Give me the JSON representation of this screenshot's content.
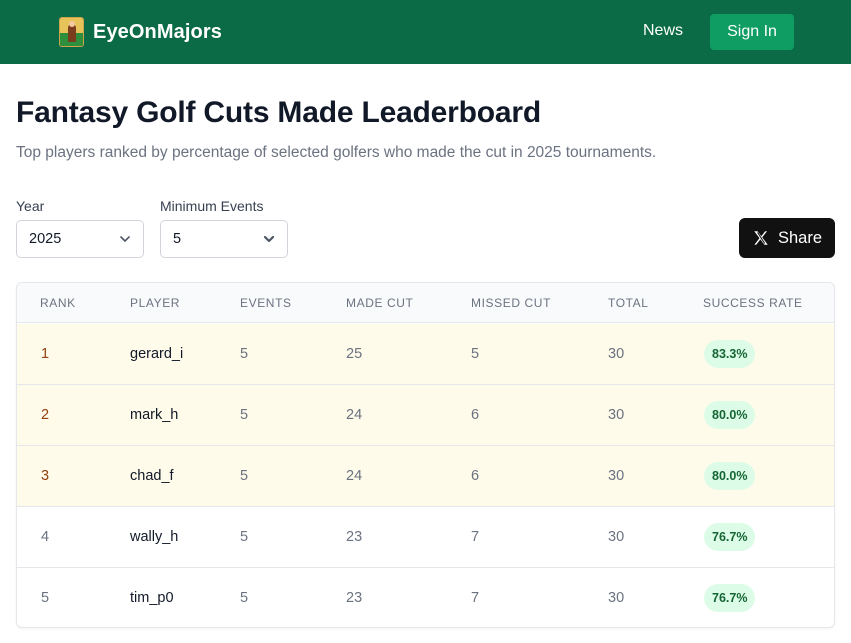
{
  "nav": {
    "brand": "EyeOnMajors",
    "news": "News",
    "sign_in": "Sign In"
  },
  "page": {
    "title": "Fantasy Golf Cuts Made Leaderboard",
    "subtitle": "Top players ranked by percentage of selected golfers who made the cut in 2025 tournaments."
  },
  "filters": {
    "year": {
      "label": "Year",
      "value": "2025"
    },
    "min_events": {
      "label": "Minimum Events",
      "value": "5"
    }
  },
  "share": {
    "label": "Share"
  },
  "table": {
    "headers": [
      "RANK",
      "PLAYER",
      "EVENTS",
      "MADE CUT",
      "MISSED CUT",
      "TOTAL",
      "SUCCESS RATE"
    ],
    "rows": [
      {
        "rank": "1",
        "player": "gerard_i",
        "events": "5",
        "made": "25",
        "missed": "5",
        "total": "30",
        "rate": "83.3%"
      },
      {
        "rank": "2",
        "player": "mark_h",
        "events": "5",
        "made": "24",
        "missed": "6",
        "total": "30",
        "rate": "80.0%"
      },
      {
        "rank": "3",
        "player": "chad_f",
        "events": "5",
        "made": "24",
        "missed": "6",
        "total": "30",
        "rate": "80.0%"
      },
      {
        "rank": "4",
        "player": "wally_h",
        "events": "5",
        "made": "23",
        "missed": "7",
        "total": "30",
        "rate": "76.7%"
      },
      {
        "rank": "5",
        "player": "tim_p0",
        "events": "5",
        "made": "23",
        "missed": "7",
        "total": "30",
        "rate": "76.7%"
      }
    ]
  },
  "colors": {
    "nav_bg": "#0b6b47",
    "sign_in_bg": "#0f9d63",
    "top3_row_bg": "#fefbea",
    "badge_bg": "#dcfce7",
    "badge_text": "#166534"
  },
  "icons": {
    "logo": "golfer-logo-icon",
    "chevron": "chevron-down-icon",
    "share": "x-logo-icon"
  }
}
